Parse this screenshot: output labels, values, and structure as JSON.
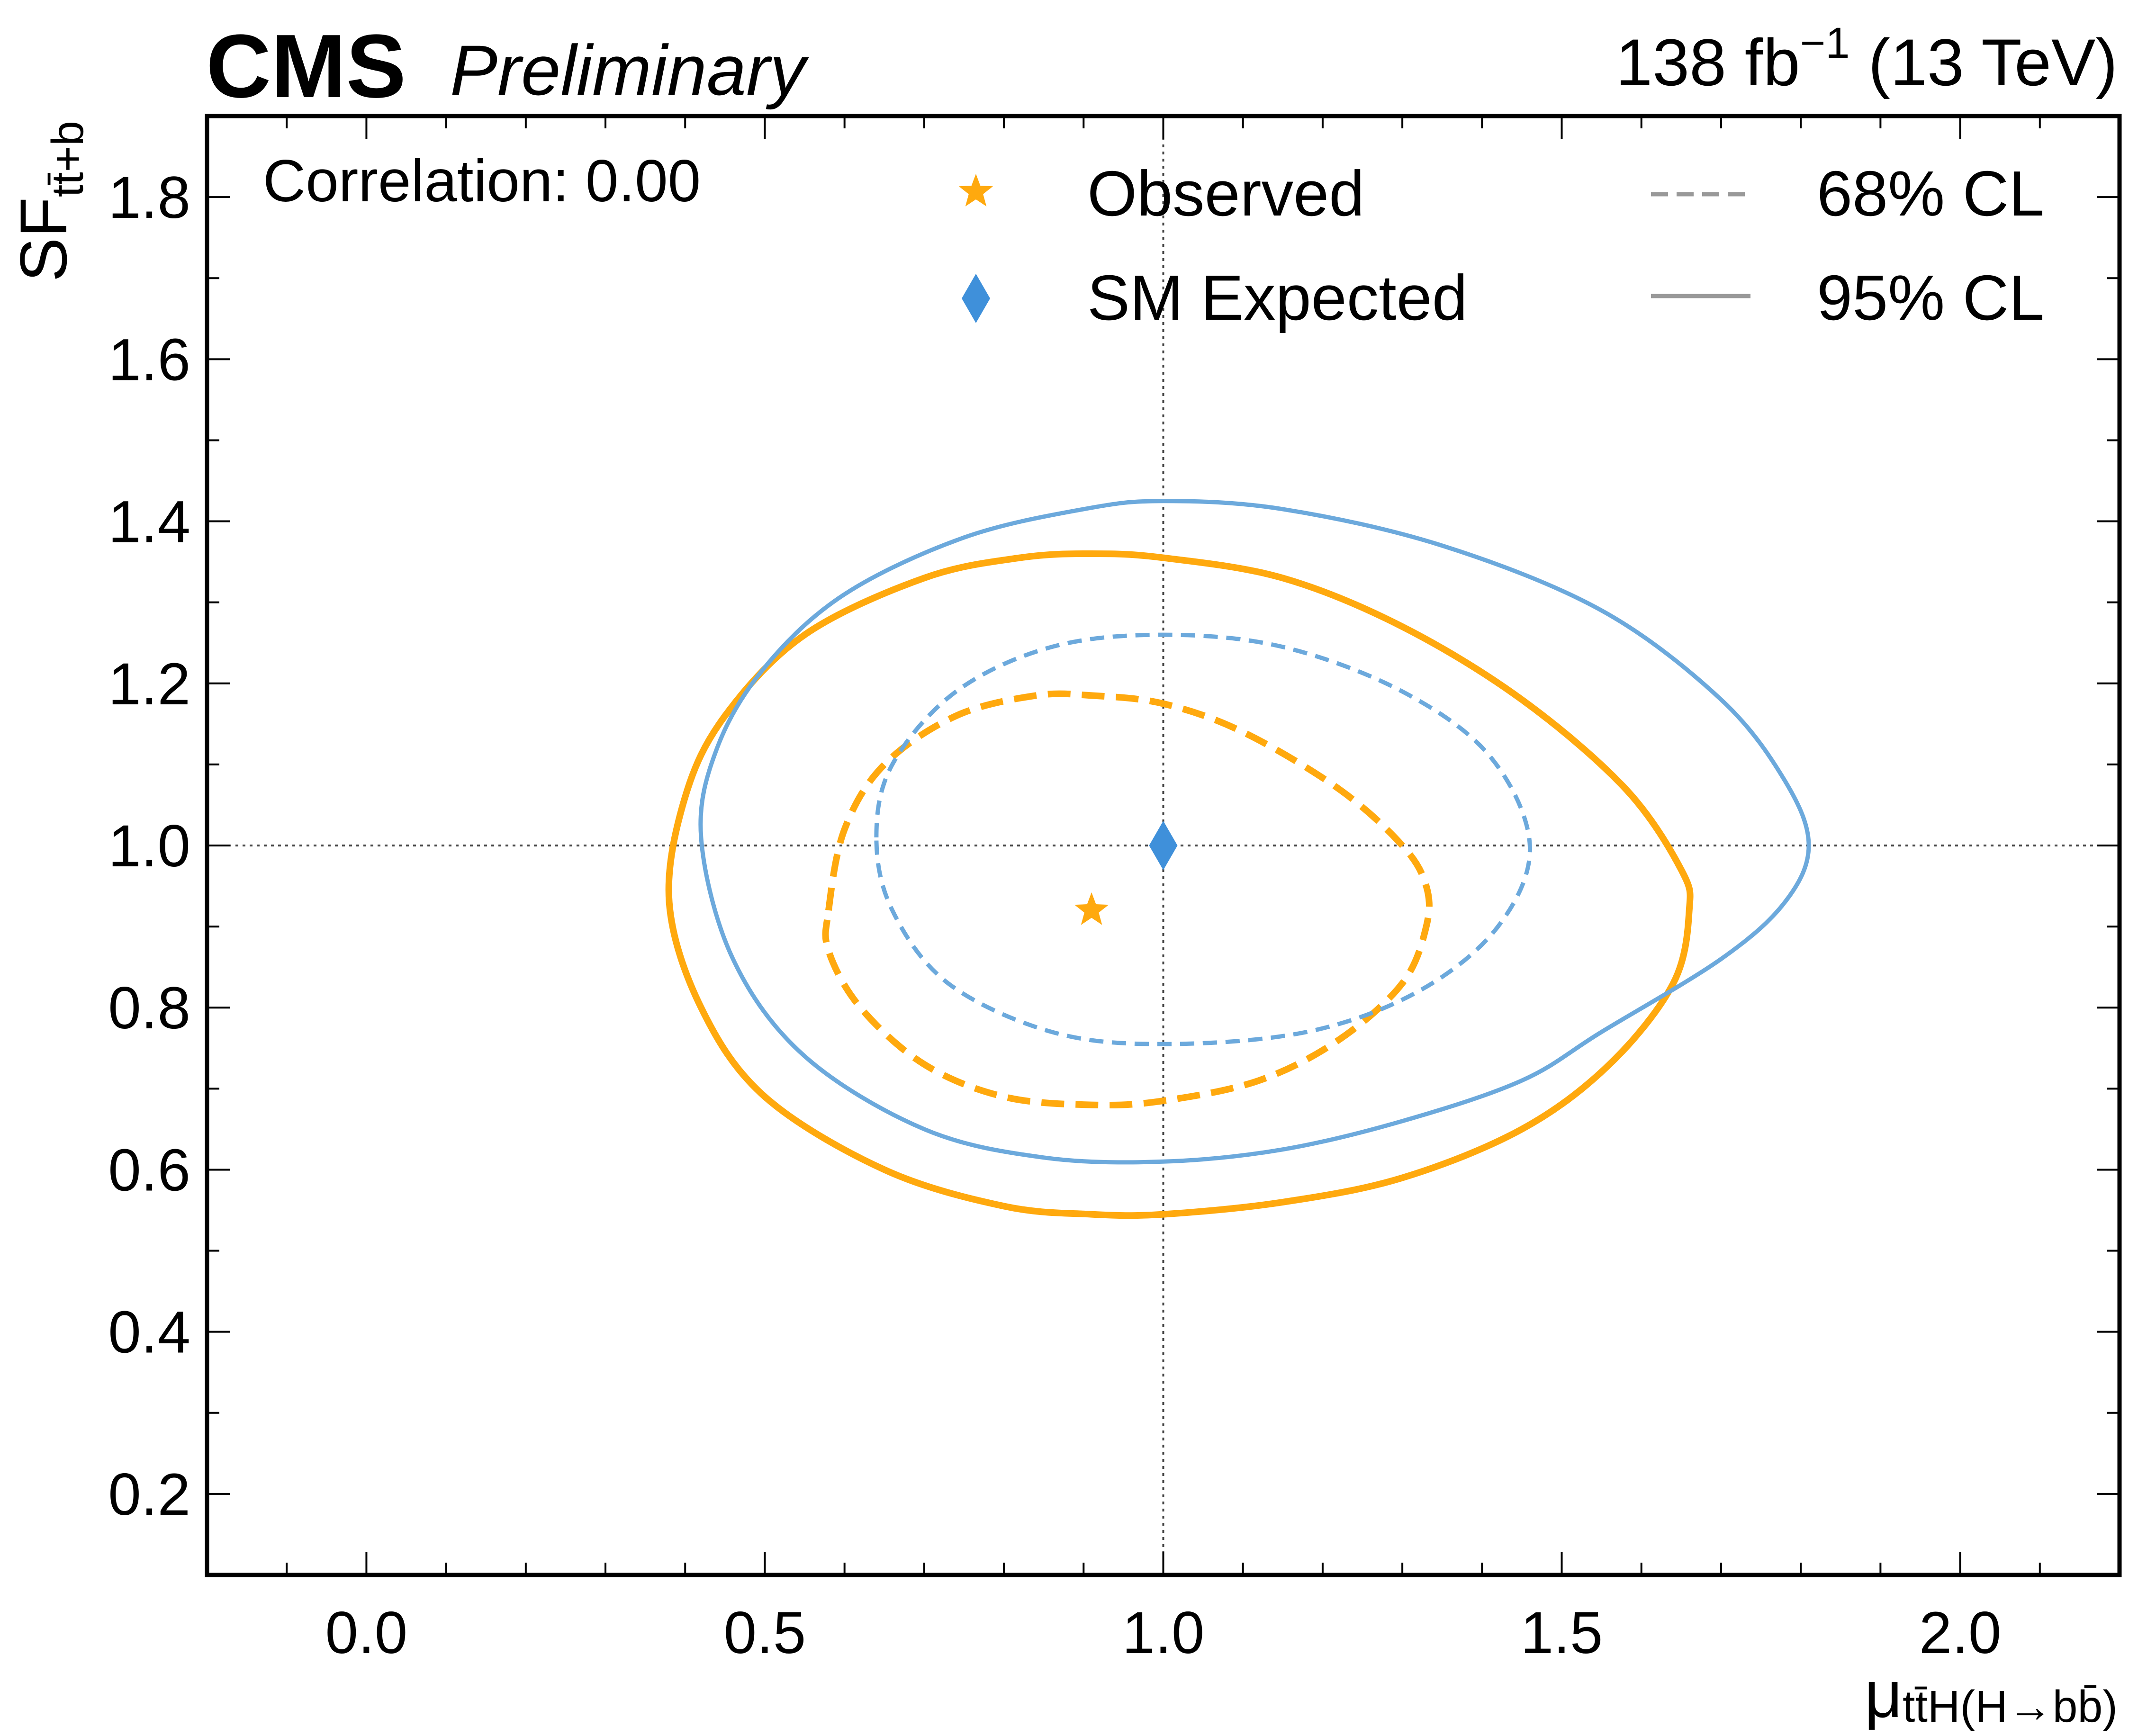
{
  "header": {
    "experiment": "CMS",
    "status": "Preliminary",
    "luminosity": "138 fb",
    "luminosity_exponent": "−1",
    "energy": " (13 TeV)"
  },
  "annotation": "Correlation: 0.00",
  "legend": {
    "observed": "Observed",
    "sm_expected": "SM Expected",
    "cl68": "68% CL",
    "cl95": "95% CL"
  },
  "colors": {
    "observed": "#ffa90e",
    "expected": "#6ca9dc",
    "expected_marker": "#3f90da",
    "legend_line": "#999999"
  },
  "chart_data": {
    "type": "scatter",
    "x_label": "μ",
    "x_label_sub": "tt̄H(H→bb̄)",
    "y_label": "SF",
    "y_label_sub": "tt̄+b",
    "xlim": [
      -0.2,
      2.2
    ],
    "ylim": [
      0.1,
      1.9
    ],
    "x_ticks": [
      "0.0",
      "0.5",
      "1.0",
      "1.5",
      "2.0"
    ],
    "x_tick_values": [
      0.0,
      0.5,
      1.0,
      1.5,
      2.0
    ],
    "y_ticks": [
      "0.2",
      "0.4",
      "0.6",
      "0.8",
      "1.0",
      "1.2",
      "1.4",
      "1.6",
      "1.8"
    ],
    "y_tick_values": [
      0.2,
      0.4,
      0.6,
      0.8,
      1.0,
      1.2,
      1.4,
      1.6,
      1.8
    ],
    "reference_lines": {
      "x": 1.0,
      "y": 1.0
    },
    "points": [
      {
        "name": "Observed",
        "x": 0.91,
        "y": 0.92,
        "marker": "star"
      },
      {
        "name": "SM Expected",
        "x": 1.0,
        "y": 1.0,
        "marker": "diamond"
      }
    ],
    "contours": [
      {
        "name": "Observed 95% CL",
        "style": "solid",
        "points": [
          [
            0.38,
            0.93
          ],
          [
            0.4,
            1.06
          ],
          [
            0.45,
            1.16
          ],
          [
            0.55,
            1.26
          ],
          [
            0.7,
            1.33
          ],
          [
            0.82,
            1.355
          ],
          [
            0.91,
            1.36
          ],
          [
            1.0,
            1.355
          ],
          [
            1.15,
            1.33
          ],
          [
            1.3,
            1.27
          ],
          [
            1.45,
            1.18
          ],
          [
            1.58,
            1.07
          ],
          [
            1.65,
            0.97
          ],
          [
            1.66,
            0.92
          ],
          [
            1.64,
            0.83
          ],
          [
            1.56,
            0.73
          ],
          [
            1.45,
            0.65
          ],
          [
            1.3,
            0.59
          ],
          [
            1.15,
            0.56
          ],
          [
            1.0,
            0.545
          ],
          [
            0.91,
            0.545
          ],
          [
            0.8,
            0.555
          ],
          [
            0.65,
            0.6
          ],
          [
            0.5,
            0.69
          ],
          [
            0.42,
            0.8
          ],
          [
            0.38,
            0.93
          ]
        ]
      },
      {
        "name": "Observed 68% CL",
        "style": "dashed",
        "points": [
          [
            0.58,
            0.92
          ],
          [
            0.6,
            1.02
          ],
          [
            0.65,
            1.1
          ],
          [
            0.74,
            1.16
          ],
          [
            0.84,
            1.185
          ],
          [
            0.91,
            1.185
          ],
          [
            1.0,
            1.175
          ],
          [
            1.1,
            1.14
          ],
          [
            1.22,
            1.07
          ],
          [
            1.3,
            1.0
          ],
          [
            1.33,
            0.95
          ],
          [
            1.33,
            0.9
          ],
          [
            1.3,
            0.83
          ],
          [
            1.22,
            0.76
          ],
          [
            1.12,
            0.71
          ],
          [
            1.0,
            0.685
          ],
          [
            0.91,
            0.68
          ],
          [
            0.8,
            0.69
          ],
          [
            0.7,
            0.73
          ],
          [
            0.62,
            0.8
          ],
          [
            0.58,
            0.87
          ],
          [
            0.58,
            0.92
          ]
        ]
      },
      {
        "name": "SM Expected 95% CL",
        "style": "solid",
        "points": [
          [
            0.42,
            1.01
          ],
          [
            0.44,
            1.12
          ],
          [
            0.5,
            1.22
          ],
          [
            0.6,
            1.31
          ],
          [
            0.75,
            1.38
          ],
          [
            0.9,
            1.415
          ],
          [
            1.0,
            1.425
          ],
          [
            1.15,
            1.415
          ],
          [
            1.35,
            1.37
          ],
          [
            1.55,
            1.29
          ],
          [
            1.7,
            1.18
          ],
          [
            1.78,
            1.08
          ],
          [
            1.81,
            1.0
          ],
          [
            1.78,
            0.93
          ],
          [
            1.7,
            0.86
          ],
          [
            1.55,
            0.77
          ],
          [
            1.45,
            0.71
          ],
          [
            1.3,
            0.66
          ],
          [
            1.15,
            0.625
          ],
          [
            1.0,
            0.61
          ],
          [
            0.85,
            0.615
          ],
          [
            0.7,
            0.65
          ],
          [
            0.55,
            0.74
          ],
          [
            0.46,
            0.86
          ],
          [
            0.42,
            1.01
          ]
        ]
      },
      {
        "name": "SM Expected 68% CL",
        "style": "dashed",
        "points": [
          [
            0.64,
            1.01
          ],
          [
            0.66,
            1.1
          ],
          [
            0.74,
            1.19
          ],
          [
            0.86,
            1.245
          ],
          [
            1.0,
            1.26
          ],
          [
            1.15,
            1.245
          ],
          [
            1.3,
            1.19
          ],
          [
            1.41,
            1.11
          ],
          [
            1.46,
            1.0
          ],
          [
            1.42,
            0.9
          ],
          [
            1.32,
            0.82
          ],
          [
            1.18,
            0.77
          ],
          [
            1.0,
            0.755
          ],
          [
            0.86,
            0.77
          ],
          [
            0.73,
            0.83
          ],
          [
            0.66,
            0.92
          ],
          [
            0.64,
            1.01
          ]
        ]
      }
    ]
  }
}
